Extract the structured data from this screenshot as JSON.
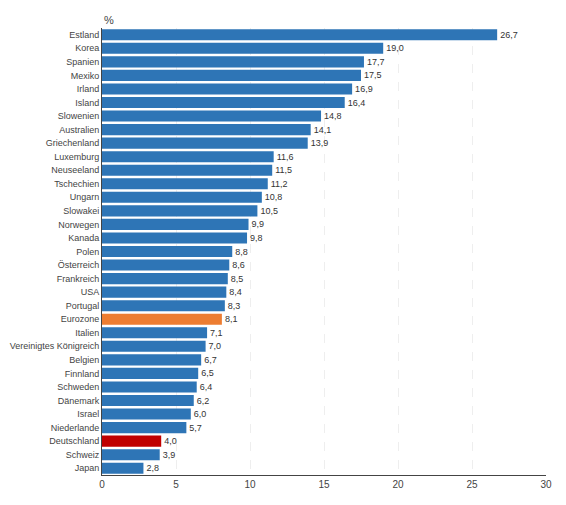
{
  "chart_data": {
    "type": "bar",
    "orientation": "horizontal",
    "ylabel": "%",
    "categories": [
      "Japan",
      "Schweiz",
      "Deutschland",
      "Niederlande",
      "Israel",
      "Dänemark",
      "Schweden",
      "Finnland",
      "Belgien",
      "Vereinigtes Königreich",
      "Italien",
      "Eurozone",
      "Portugal",
      "USA",
      "Frankreich",
      "Österreich",
      "Polen",
      "Kanada",
      "Norwegen",
      "Slowakei",
      "Ungarn",
      "Tschechien",
      "Neuseeland",
      "Luxemburg",
      "Griechenland",
      "Australien",
      "Slowenien",
      "Island",
      "Irland",
      "Mexiko",
      "Spanien",
      "Korea",
      "Estland"
    ],
    "values": [
      2.8,
      3.9,
      4.0,
      5.7,
      6.0,
      6.2,
      6.4,
      6.5,
      6.7,
      7.0,
      7.1,
      8.1,
      8.3,
      8.4,
      8.5,
      8.6,
      8.8,
      9.8,
      9.9,
      10.5,
      10.8,
      11.2,
      11.5,
      11.6,
      13.9,
      14.1,
      14.8,
      16.4,
      16.9,
      17.5,
      17.7,
      19.0,
      26.7
    ],
    "value_labels": [
      "2,8",
      "3,9",
      "4,0",
      "5,7",
      "6,0",
      "6,2",
      "6,4",
      "6,5",
      "6,7",
      "7,0",
      "7,1",
      "8,1",
      "8,3",
      "8,4",
      "8,5",
      "8,6",
      "8,8",
      "9,8",
      "9,9",
      "10,5",
      "10,8",
      "11,2",
      "11,5",
      "11,6",
      "13,9",
      "14,1",
      "14,8",
      "16,4",
      "16,9",
      "17,5",
      "17,7",
      "19,0",
      "26,7"
    ],
    "data_labels": true,
    "colors": [
      "#2E75B6",
      "#2E75B6",
      "#C00000",
      "#2E75B6",
      "#2E75B6",
      "#2E75B6",
      "#2E75B6",
      "#2E75B6",
      "#2E75B6",
      "#2E75B6",
      "#2E75B6",
      "#ED7D31",
      "#2E75B6",
      "#2E75B6",
      "#2E75B6",
      "#2E75B6",
      "#2E75B6",
      "#2E75B6",
      "#2E75B6",
      "#2E75B6",
      "#2E75B6",
      "#2E75B6",
      "#2E75B6",
      "#2E75B6",
      "#2E75B6",
      "#2E75B6",
      "#2E75B6",
      "#2E75B6",
      "#2E75B6",
      "#2E75B6",
      "#2E75B6",
      "#2E75B6",
      "#2E75B6"
    ],
    "xlim": [
      0,
      30
    ],
    "xticks": [
      0,
      5,
      10,
      15,
      20,
      25,
      30
    ],
    "grid": true
  }
}
